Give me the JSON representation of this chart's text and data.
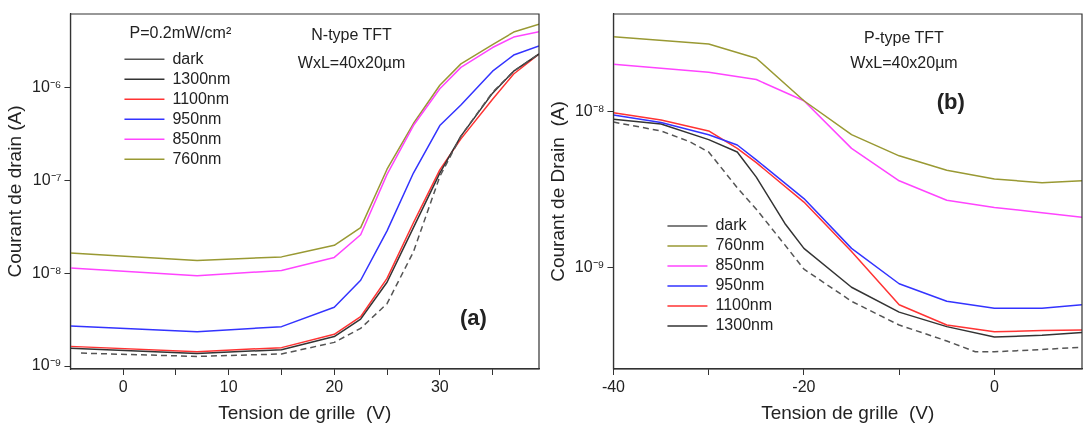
{
  "chart_data": [
    {
      "type": "line",
      "xlabel": "Tension de grille  (V)",
      "ylabel": "Courant de drain (A)",
      "log": "y",
      "legend": "top left",
      "legend_title": "P=0.2mW/cm²",
      "annotations": [
        "N-type TFT",
        "WxL=40x20µm",
        "(a)"
      ],
      "xlim": [
        -5,
        39.4
      ],
      "xticks": [
        0,
        {
          "value": 5,
          "label": null
        },
        10,
        {
          "value": 15,
          "label": null
        },
        20,
        {
          "value": 25,
          "label": null
        },
        30,
        {
          "value": 35,
          "label": null
        }
      ],
      "ylim": [
        9.3e-10,
        6.2e-06
      ],
      "yticks": [
        {
          "value": 1e-09,
          "label": "10⁻⁹"
        },
        {
          "value": 1e-08,
          "label": "10⁻⁸"
        },
        {
          "value": 1e-07,
          "label": "10⁻⁷"
        },
        {
          "value": 1e-06,
          "label": "10⁻⁶"
        }
      ],
      "series": [
        {
          "name": "dark",
          "color": "#555555",
          "line_style": "dashed",
          "x": [
            -4,
            7,
            15,
            20,
            22.5,
            25,
            27.5,
            30,
            32,
            35,
            37,
            39.4
          ],
          "values": [
            1.38e-09,
            1.27e-09,
            1.35e-09,
            1.8e-09,
            2.55e-09,
            4.7e-09,
            1.7e-08,
            1.1e-07,
            3e-07,
            8.9e-07,
            1.5e-06,
            2.3e-06
          ]
        },
        {
          "name": "1300nm",
          "color": "#333333",
          "x": [
            -5,
            7,
            15,
            20,
            22.5,
            25,
            27.5,
            30,
            32,
            35,
            37,
            39.4
          ],
          "values": [
            1.56e-09,
            1.37e-09,
            1.5e-09,
            2.08e-09,
            3.2e-09,
            8e-09,
            3.1e-08,
            1.2e-07,
            3e-07,
            8.7e-07,
            1.5e-06,
            2.3e-06
          ]
        },
        {
          "name": "1100nm",
          "color": "#ff3333",
          "x": [
            -5,
            7,
            15,
            20,
            22.5,
            25,
            27.5,
            30,
            32,
            35,
            37,
            39.4
          ],
          "values": [
            1.63e-09,
            1.43e-09,
            1.58e-09,
            2.2e-09,
            3.4e-09,
            8.8e-09,
            3.5e-08,
            1.3e-07,
            2.8e-07,
            7.5e-07,
            1.4e-06,
            2.3e-06
          ]
        },
        {
          "name": "950nm",
          "color": "#3333ff",
          "x": [
            -5,
            7,
            15,
            20,
            22.5,
            25,
            27.5,
            30,
            32,
            35,
            37,
            39.4
          ],
          "values": [
            2.7e-09,
            2.34e-09,
            2.66e-09,
            4.3e-09,
            8.4e-09,
            2.86e-08,
            1.2e-07,
            3.9e-07,
            6.5e-07,
            1.5e-06,
            2.24e-06,
            2.8e-06
          ]
        },
        {
          "name": "850nm",
          "color": "#ff44ff",
          "x": [
            -5,
            7,
            15,
            20,
            22.5,
            25,
            27.5,
            30,
            32,
            35,
            37,
            39.4
          ],
          "values": [
            1.14e-08,
            9.4e-09,
            1.07e-08,
            1.48e-08,
            2.6e-08,
            1.16e-07,
            3.9e-07,
            9.7e-07,
            1.65e-06,
            2.7e-06,
            3.5e-06,
            4e-06
          ]
        },
        {
          "name": "760nm",
          "color": "#999933",
          "x": [
            -5,
            7,
            15,
            20,
            22.5,
            25,
            27.5,
            30,
            32,
            35,
            37,
            39.4
          ],
          "values": [
            1.65e-08,
            1.37e-08,
            1.5e-08,
            2e-08,
            3.1e-08,
            1.32e-07,
            4.1e-07,
            1.06e-06,
            1.8e-06,
            2.9e-06,
            3.96e-06,
            4.8e-06
          ]
        }
      ]
    },
    {
      "type": "line",
      "xlabel": "Tension de grille  (V)",
      "ylabel": "Courant de Drain  (A)",
      "log": "y",
      "legend": "bottom left",
      "annotations": [
        "P-type TFT",
        "WxL=40x20µm",
        "(b)"
      ],
      "xlim": [
        -40,
        9.2
      ],
      "xticks": [
        -40,
        {
          "value": -30,
          "label": null
        },
        -20,
        {
          "value": -10,
          "label": null
        },
        0
      ],
      "ylim": [
        2.25e-10,
        4.2e-08
      ],
      "yticks": [
        {
          "value": 1e-09,
          "label": "10⁻⁹"
        },
        {
          "value": 1e-08,
          "label": "10⁻⁸"
        }
      ],
      "series": [
        {
          "name": "dark",
          "color": "#555555",
          "line_style": "dashed",
          "x": [
            -40,
            -35,
            -32,
            -30,
            -27,
            -25,
            -22,
            -20,
            -15,
            -10,
            -5,
            -2,
            0,
            5,
            9.2
          ],
          "values": [
            8.55e-09,
            7.5e-09,
            6.4e-09,
            5.5e-09,
            3.25e-09,
            2.37e-09,
            1.4e-09,
            9.8e-10,
            6.1e-10,
            4.3e-10,
            3.4e-10,
            2.9e-10,
            2.9e-10,
            3e-10,
            3.1e-10
          ]
        },
        {
          "name": "760nm",
          "color": "#999933",
          "x": [
            -40,
            -30,
            -25,
            -20,
            -15,
            -10,
            -5,
            0,
            5,
            9.2
          ],
          "values": [
            3e-08,
            2.7e-08,
            2.19e-08,
            1.17e-08,
            7.1e-09,
            5.2e-09,
            4.2e-09,
            3.7e-09,
            3.5e-09,
            3.6e-09
          ]
        },
        {
          "name": "850nm",
          "color": "#ff44ff",
          "x": [
            -40,
            -30,
            -25,
            -20,
            -15,
            -10,
            -5,
            0,
            5,
            9.2
          ],
          "values": [
            2e-08,
            1.78e-08,
            1.6e-08,
            1.17e-08,
            5.8e-09,
            3.6e-09,
            2.7e-09,
            2.43e-09,
            2.25e-09,
            2.1e-09
          ]
        },
        {
          "name": "950nm",
          "color": "#3333ff",
          "x": [
            -40,
            -35,
            -30,
            -27,
            -25,
            -20,
            -15,
            -10,
            -5,
            0,
            5,
            9.2
          ],
          "values": [
            9.5e-09,
            8.5e-09,
            7.1e-09,
            6.1e-09,
            4.9e-09,
            2.77e-09,
            1.33e-09,
            7.9e-10,
            6.1e-10,
            5.5e-10,
            5.5e-10,
            5.8e-10
          ]
        },
        {
          "name": "1100nm",
          "color": "#ff3333",
          "x": [
            -40,
            -35,
            -30,
            -27,
            -25,
            -20,
            -15,
            -10,
            -5,
            0,
            5,
            9.2
          ],
          "values": [
            9.8e-09,
            8.8e-09,
            7.5e-09,
            5.8e-09,
            4.7e-09,
            2.63e-09,
            1.27e-09,
            5.8e-10,
            4.3e-10,
            3.9e-10,
            3.96e-10,
            4e-10
          ]
        },
        {
          "name": "1300nm",
          "color": "#333333",
          "x": [
            -40,
            -35,
            -30,
            -27,
            -25,
            -22,
            -20,
            -15,
            -10,
            -5,
            0,
            5,
            9.2
          ],
          "values": [
            8.9e-09,
            8.3e-09,
            6.6e-09,
            5.5e-09,
            3.8e-09,
            1.92e-09,
            1.33e-09,
            7.5e-10,
            5.2e-10,
            4.2e-10,
            3.6e-10,
            3.7e-10,
            3.85e-10
          ]
        }
      ]
    }
  ]
}
